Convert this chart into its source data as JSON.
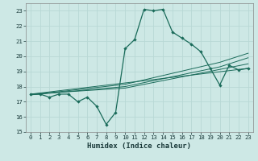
{
  "title": "",
  "xlabel": "Humidex (Indice chaleur)",
  "xlim": [
    -0.5,
    23.5
  ],
  "ylim": [
    15,
    23.5
  ],
  "yticks": [
    15,
    16,
    17,
    18,
    19,
    20,
    21,
    22,
    23
  ],
  "xticks": [
    0,
    1,
    2,
    3,
    4,
    5,
    6,
    7,
    8,
    9,
    10,
    11,
    12,
    13,
    14,
    15,
    16,
    17,
    18,
    19,
    20,
    21,
    22,
    23
  ],
  "bg_color": "#cde8e5",
  "grid_color": "#b8d8d5",
  "line_color": "#1a6b5a",
  "series_main": {
    "x": [
      0,
      1,
      2,
      3,
      4,
      5,
      6,
      7,
      8,
      9,
      10,
      11,
      12,
      13,
      14,
      15,
      16,
      17,
      18,
      19,
      20,
      21,
      22,
      23
    ],
    "y": [
      17.5,
      17.5,
      17.3,
      17.5,
      17.5,
      17.0,
      17.3,
      16.7,
      15.5,
      16.3,
      20.5,
      21.1,
      23.1,
      23.0,
      23.1,
      21.6,
      21.2,
      20.8,
      20.3,
      19.2,
      18.1,
      19.4,
      19.1,
      19.2
    ]
  },
  "trend1": {
    "x": [
      0,
      23
    ],
    "y": [
      17.5,
      19.2
    ]
  },
  "trend2": {
    "x": [
      0,
      10,
      23
    ],
    "y": [
      17.5,
      17.9,
      19.5
    ]
  },
  "trend3": {
    "x": [
      0,
      10,
      20,
      23
    ],
    "y": [
      17.45,
      18.0,
      19.3,
      19.9
    ]
  },
  "trend4": {
    "x": [
      0,
      10,
      20,
      23
    ],
    "y": [
      17.45,
      18.15,
      19.6,
      20.2
    ]
  }
}
